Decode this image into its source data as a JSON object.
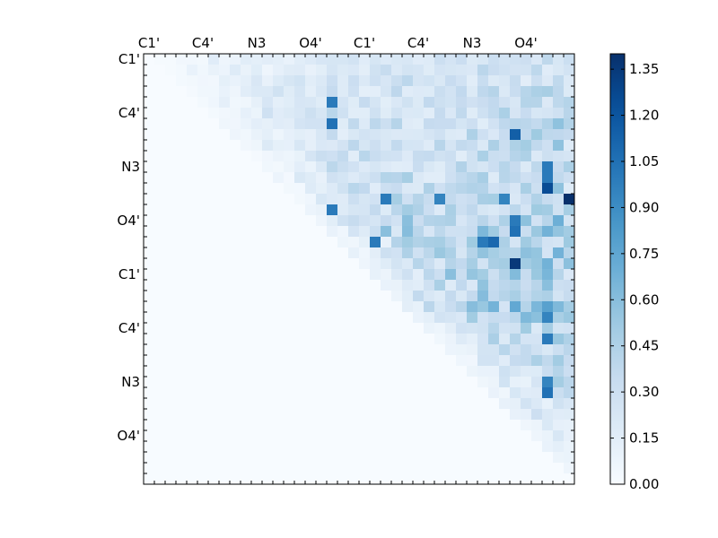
{
  "chart_data": {
    "type": "heatmap",
    "title": "",
    "matrix_size": 40,
    "xlabel": "",
    "ylabel": "",
    "x_tick_labels": [
      "C1'",
      "C4'",
      "N3",
      "O4'",
      "C1'",
      "C4'",
      "N3",
      "O4'"
    ],
    "y_tick_labels": [
      "C1'",
      "C4'",
      "N3",
      "O4'",
      "C1'",
      "C4'",
      "N3",
      "O4'"
    ],
    "x_tick_indices": [
      0,
      5,
      10,
      15,
      20,
      25,
      30,
      35
    ],
    "y_tick_indices": [
      0,
      5,
      10,
      15,
      20,
      25,
      30,
      35
    ],
    "colorbar": {
      "min": 0.0,
      "max": 1.4,
      "ticks": [
        "0.00",
        "0.15",
        "0.30",
        "0.45",
        "0.60",
        "0.75",
        "0.90",
        "1.05",
        "1.20",
        "1.35"
      ],
      "colormap": "Blues",
      "color_low": "#f7fbff",
      "color_high": "#08306b"
    },
    "grid": false,
    "legend": "colorbar-right",
    "triangle": "upper",
    "column_profile": [
      0.0,
      0.06,
      0.06,
      0.05,
      0.08,
      0.08,
      0.1,
      0.1,
      0.08,
      0.1,
      0.09,
      0.12,
      0.18,
      0.14,
      0.22,
      0.25,
      0.22,
      0.34,
      0.3,
      0.33,
      0.4,
      0.33,
      0.42,
      0.4,
      0.45,
      0.36,
      0.36,
      0.38,
      0.38,
      0.38,
      0.45,
      0.48,
      0.46,
      0.48,
      0.5,
      0.52,
      0.55,
      0.6,
      0.65,
      0.45
    ],
    "row_profile": [
      0.2,
      0.25,
      0.3,
      0.32,
      0.35,
      0.4,
      0.42,
      0.4,
      0.45,
      0.4,
      0.42,
      0.45,
      0.46,
      0.5,
      0.55,
      0.72,
      0.7,
      0.52,
      0.62,
      0.65,
      0.72,
      0.6,
      0.75,
      0.85,
      0.7,
      0.45,
      0.4,
      0.42,
      0.36,
      0.4,
      0.4,
      0.4,
      0.42,
      0.4,
      0.38,
      0.38,
      0.32,
      0.28,
      0.2,
      0.1
    ],
    "peaks": [
      {
        "row": 4,
        "col": 17,
        "value": 1.0
      },
      {
        "row": 6,
        "col": 17,
        "value": 1.05
      },
      {
        "row": 7,
        "col": 34,
        "value": 1.15
      },
      {
        "row": 10,
        "col": 37,
        "value": 1.0
      },
      {
        "row": 11,
        "col": 37,
        "value": 1.0
      },
      {
        "row": 12,
        "col": 37,
        "value": 1.25
      },
      {
        "row": 13,
        "col": 39,
        "value": 1.4
      },
      {
        "row": 13,
        "col": 22,
        "value": 1.0
      },
      {
        "row": 13,
        "col": 27,
        "value": 0.95
      },
      {
        "row": 13,
        "col": 33,
        "value": 0.95
      },
      {
        "row": 14,
        "col": 17,
        "value": 1.0
      },
      {
        "row": 15,
        "col": 34,
        "value": 1.0
      },
      {
        "row": 16,
        "col": 34,
        "value": 1.05
      },
      {
        "row": 17,
        "col": 21,
        "value": 1.0
      },
      {
        "row": 17,
        "col": 31,
        "value": 1.0
      },
      {
        "row": 17,
        "col": 32,
        "value": 1.1
      },
      {
        "row": 19,
        "col": 34,
        "value": 1.35
      },
      {
        "row": 24,
        "col": 37,
        "value": 0.95
      },
      {
        "row": 26,
        "col": 37,
        "value": 1.0
      },
      {
        "row": 30,
        "col": 37,
        "value": 0.95
      },
      {
        "row": 31,
        "col": 37,
        "value": 1.05
      }
    ]
  }
}
